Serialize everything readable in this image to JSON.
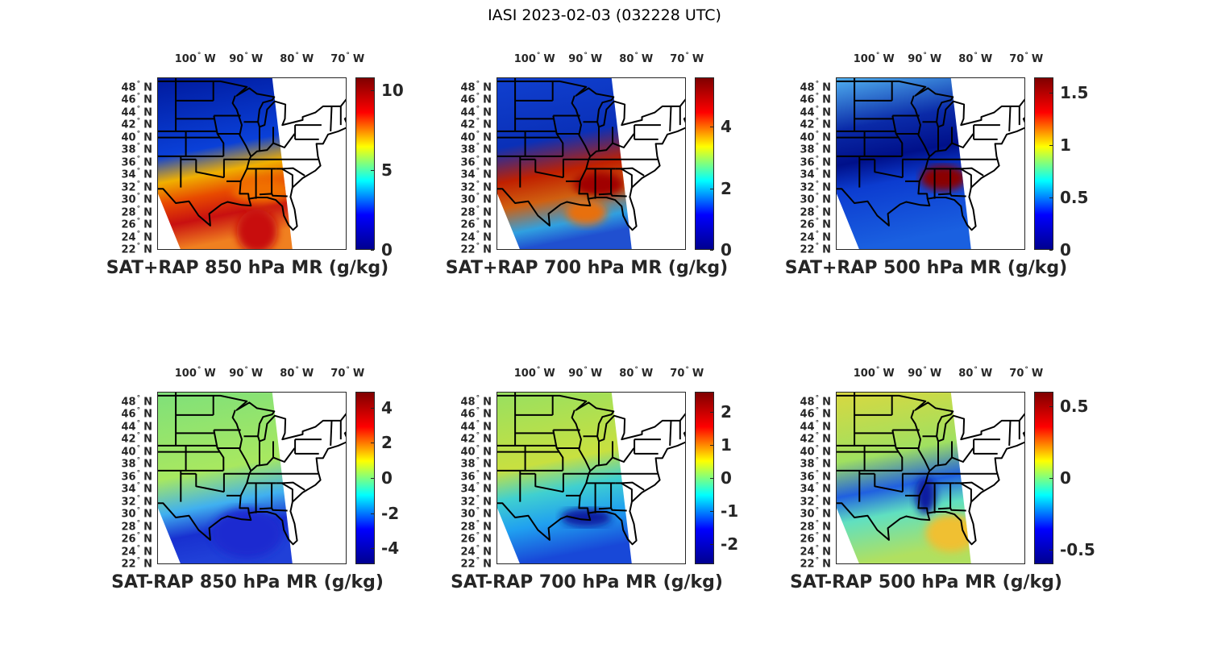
{
  "figure_title": "IASI 2023-02-03 (032228 UTC)",
  "colormap": "jet",
  "colormap_colors": [
    "#00008f",
    "#0000ff",
    "#00ffff",
    "#ffff00",
    "#ff0000",
    "#800000"
  ],
  "lon_labels": [
    {
      "lon": -100,
      "text": "100",
      "suffix": "W"
    },
    {
      "lon": -90,
      "text": "90",
      "suffix": "W"
    },
    {
      "lon": -80,
      "text": "80",
      "suffix": "W"
    },
    {
      "lon": -70,
      "text": "70",
      "suffix": "W"
    }
  ],
  "lat_labels": [
    {
      "lat": 48,
      "text": "48",
      "suffix": "N"
    },
    {
      "lat": 46,
      "text": "46",
      "suffix": "N"
    },
    {
      "lat": 44,
      "text": "44",
      "suffix": "N"
    },
    {
      "lat": 42,
      "text": "42",
      "suffix": "N"
    },
    {
      "lat": 40,
      "text": "40",
      "suffix": "N"
    },
    {
      "lat": 38,
      "text": "38",
      "suffix": "N"
    },
    {
      "lat": 36,
      "text": "36",
      "suffix": "N"
    },
    {
      "lat": 34,
      "text": "34",
      "suffix": "N"
    },
    {
      "lat": 32,
      "text": "32",
      "suffix": "N"
    },
    {
      "lat": 30,
      "text": "30",
      "suffix": "N"
    },
    {
      "lat": 28,
      "text": "28",
      "suffix": "N"
    },
    {
      "lat": 26,
      "text": "26",
      "suffix": "N"
    },
    {
      "lat": 24,
      "text": "24",
      "suffix": "N"
    },
    {
      "lat": 22,
      "text": "22",
      "suffix": "N"
    }
  ],
  "panels": [
    {
      "title": "SAT+RAP 850 hPa MR (g/kg)",
      "clim": [
        0,
        10.8
      ],
      "ticks": [
        "0",
        "5",
        "10"
      ],
      "tick_values": [
        0,
        5,
        10
      ]
    },
    {
      "title": "SAT+RAP 700 hPa MR (g/kg)",
      "clim": [
        0,
        5.6
      ],
      "ticks": [
        "0",
        "2",
        "4"
      ],
      "tick_values": [
        0,
        2,
        4
      ]
    },
    {
      "title": "SAT+RAP 500 hPa MR (g/kg)",
      "clim": [
        0,
        1.65
      ],
      "ticks": [
        "0",
        "0.5",
        "1",
        "1.5"
      ],
      "tick_values": [
        0,
        0.5,
        1,
        1.5
      ]
    },
    {
      "title": "SAT-RAP 850 hPa MR (g/kg)",
      "clim": [
        -4.9,
        4.9
      ],
      "ticks": [
        "-4",
        "-2",
        "0",
        "2",
        "4"
      ],
      "tick_values": [
        -4,
        -2,
        0,
        2,
        4
      ]
    },
    {
      "title": "SAT-RAP 700 hPa MR (g/kg)",
      "clim": [
        -2.6,
        2.6
      ],
      "ticks": [
        "-2",
        "-1",
        "0",
        "1",
        "2"
      ],
      "tick_values": [
        -2,
        -1,
        0,
        1,
        2
      ]
    },
    {
      "title": "SAT-RAP 500 hPa MR (g/kg)",
      "clim": [
        -0.6,
        0.6
      ],
      "ticks": [
        "-0.5",
        "0",
        "0.5"
      ],
      "tick_values": [
        -0.5,
        0,
        0.5
      ]
    }
  ]
}
